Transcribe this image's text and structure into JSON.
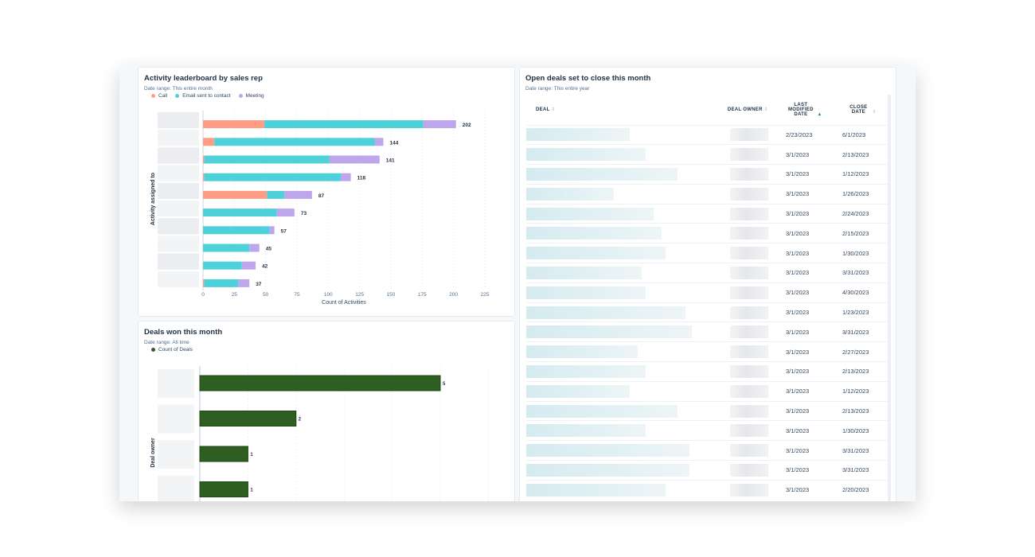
{
  "activity_card": {
    "title": "Activity leaderboard by sales rep",
    "date_range": "Date range: This entire month",
    "legend": [
      {
        "label": "Call",
        "color": "#ff9e85"
      },
      {
        "label": "Email sent to contact",
        "color": "#4fd1d9"
      },
      {
        "label": "Meeting",
        "color": "#bda6ec"
      }
    ]
  },
  "deals_won_card": {
    "title": "Deals won this month",
    "date_range": "Date range: All time",
    "legend": [
      {
        "label": "Count of Deals",
        "color": "#2e5e22"
      }
    ]
  },
  "open_deals_card": {
    "title": "Open deals set to close this month",
    "date_range": "Date range: This entire year",
    "columns": [
      "DEAL",
      "DEAL OWNER",
      "LAST MODIFIED DATE",
      "CLOSE DATE"
    ],
    "sort_icon": "sort-arrows-icon",
    "sorted_column": "LAST MODIFIED DATE",
    "rows": [
      {
        "last_modified": "2/23/2023",
        "close": "6/1/2023"
      },
      {
        "last_modified": "3/1/2023",
        "close": "2/13/2023"
      },
      {
        "last_modified": "3/1/2023",
        "close": "1/12/2023"
      },
      {
        "last_modified": "3/1/2023",
        "close": "1/26/2023"
      },
      {
        "last_modified": "3/1/2023",
        "close": "2/24/2023"
      },
      {
        "last_modified": "3/1/2023",
        "close": "2/15/2023"
      },
      {
        "last_modified": "3/1/2023",
        "close": "1/30/2023"
      },
      {
        "last_modified": "3/1/2023",
        "close": "3/31/2023"
      },
      {
        "last_modified": "3/1/2023",
        "close": "4/30/2023"
      },
      {
        "last_modified": "3/1/2023",
        "close": "1/23/2023"
      },
      {
        "last_modified": "3/1/2023",
        "close": "3/31/2023"
      },
      {
        "last_modified": "3/1/2023",
        "close": "2/27/2023"
      },
      {
        "last_modified": "3/1/2023",
        "close": "2/13/2023"
      },
      {
        "last_modified": "3/1/2023",
        "close": "1/12/2023"
      },
      {
        "last_modified": "3/1/2023",
        "close": "2/13/2023"
      },
      {
        "last_modified": "3/1/2023",
        "close": "1/30/2023"
      },
      {
        "last_modified": "3/1/2023",
        "close": "3/31/2023"
      },
      {
        "last_modified": "3/1/2023",
        "close": "3/31/2023"
      },
      {
        "last_modified": "3/1/2023",
        "close": "2/20/2023"
      }
    ]
  },
  "chart_data": [
    {
      "type": "bar",
      "orientation": "horizontal",
      "stacked": true,
      "title": "Activity leaderboard by sales rep",
      "xlabel": "Count of Activities",
      "ylabel": "Activity assigned to",
      "xlim": [
        0,
        225
      ],
      "xticks": [
        0,
        25,
        50,
        75,
        100,
        125,
        150,
        175,
        200,
        225
      ],
      "grid": true,
      "legend": "top-left",
      "totals": [
        202,
        144,
        141,
        118,
        87,
        73,
        57,
        45,
        42,
        37
      ],
      "series": [
        {
          "name": "Call",
          "color": "#ff9e85",
          "values": [
            49,
            9,
            1,
            1,
            51,
            0,
            0,
            0,
            0,
            1
          ]
        },
        {
          "name": "Email sent to contact",
          "color": "#4fd1d9",
          "values": [
            127,
            128,
            100,
            109,
            14,
            59,
            53,
            37,
            31,
            27
          ]
        },
        {
          "name": "Meeting",
          "color": "#bda6ec",
          "values": [
            26,
            7,
            40,
            8,
            22,
            14,
            4,
            8,
            11,
            9
          ]
        }
      ]
    },
    {
      "type": "bar",
      "orientation": "horizontal",
      "title": "Deals won this month",
      "ylabel": "Deal owner",
      "xlim": [
        0,
        6
      ],
      "grid": true,
      "legend": "top-left",
      "series": [
        {
          "name": "Count of Deals",
          "color": "#2e5e22",
          "values": [
            5,
            2,
            1,
            1
          ]
        }
      ]
    }
  ]
}
